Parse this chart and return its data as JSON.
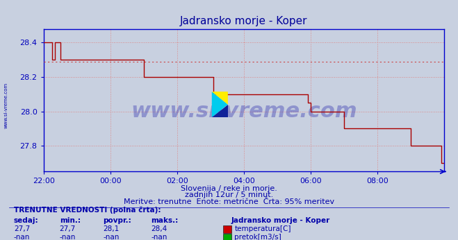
{
  "title": "Jadransko morje - Koper",
  "title_color": "#000099",
  "bg_color": "#c8d0e0",
  "plot_bg_color": "#c8d0e0",
  "grid_color": "#dd8888",
  "axis_color": "#0000bb",
  "line_color": "#aa0000",
  "dashed_line_color": "#cc4444",
  "bottom_axis_color": "#0000cc",
  "x_ticks": [
    "22:00",
    "00:00",
    "02:00",
    "04:00",
    "06:00",
    "08:00"
  ],
  "x_tick_positions": [
    0,
    24,
    48,
    72,
    96,
    120
  ],
  "xlim": [
    0,
    144
  ],
  "ylim": [
    27.65,
    28.48
  ],
  "y_ticks": [
    27.8,
    28.0,
    28.2,
    28.4
  ],
  "temp_data_x": [
    0,
    2,
    3,
    4,
    5,
    6,
    7,
    10,
    11,
    14,
    36,
    37,
    48,
    60,
    61,
    72,
    73,
    84,
    85,
    95,
    96,
    107,
    108,
    120,
    132,
    133,
    143,
    144
  ],
  "temp_data_y": [
    28.4,
    28.4,
    28.3,
    28.4,
    28.4,
    28.3,
    28.3,
    28.3,
    28.3,
    28.3,
    28.2,
    28.2,
    28.2,
    28.2,
    28.1,
    28.1,
    28.1,
    28.1,
    28.1,
    28.05,
    28.0,
    28.0,
    27.9,
    27.9,
    27.8,
    27.8,
    27.7,
    27.7
  ],
  "dashed_y": 28.29,
  "watermark_text": "www.si-vreme.com",
  "watermark_color": "#2222aa",
  "watermark_alpha": 0.35,
  "subtitle1": "Slovenija / reke in morje.",
  "subtitle2": "zadnjih 12ur / 5 minut.",
  "subtitle3": "Meritve: trenutne  Enote: metrične  Črta: 95% meritev",
  "subtitle_color": "#0000aa",
  "table_title": "TRENUTNE VREDNOSTI (polna črta):",
  "col_headers": [
    "sedaj:",
    "min.:",
    "povpr.:",
    "maks.:"
  ],
  "row1_vals": [
    "27,7",
    "27,7",
    "28,1",
    "28,4"
  ],
  "row2_vals": [
    "-nan",
    "-nan",
    "-nan",
    "-nan"
  ],
  "legend_label1": "temperatura[C]",
  "legend_label2": "pretok[m3/s]",
  "legend_color1": "#cc0000",
  "legend_color2": "#00aa00",
  "station_label": "Jadransko morje - Koper",
  "left_label": "www.si-vreme.com",
  "left_label_color": "#0000aa",
  "table_color": "#0000aa",
  "val_color": "#0000aa"
}
